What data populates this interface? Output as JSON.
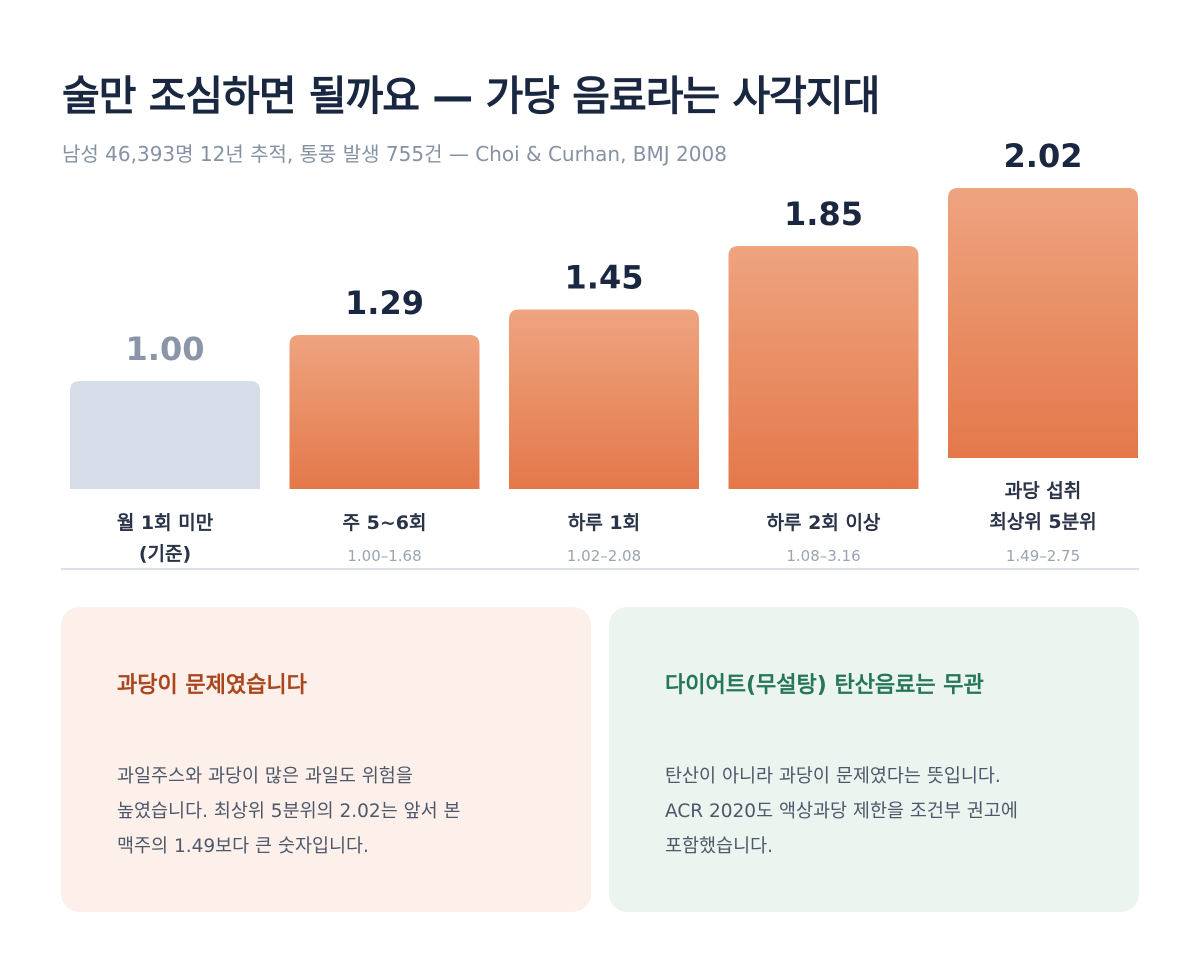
{
  "header": {
    "title": "술만 조심하면 될까요 — 가당 음료라는 사각지대",
    "subtitle": "남성 46,393명 12년 추적, 통풍 발생 755건 — Choi & Curhan, BMJ 2008"
  },
  "chart_data": {
    "type": "bar",
    "title": "술만 조심하면 될까요 — 가당 음료라는 사각지대",
    "xlabel": "",
    "ylabel": "",
    "ylim": [
      0,
      2.02
    ],
    "grid": false,
    "legend": "none",
    "categories": [
      [
        "월 1회 미만",
        "(기준)"
      ],
      [
        "주 5~6회"
      ],
      [
        "하루 1회"
      ],
      [
        "하루 2회 이상"
      ],
      [
        "과당 섭취",
        "최상위 5분위"
      ]
    ],
    "values": [
      1.0,
      1.29,
      1.45,
      1.85,
      2.02
    ],
    "value_labels": [
      "1.00",
      "1.29",
      "1.45",
      "1.85",
      "2.02"
    ],
    "ci_labels": [
      "",
      "1.00–1.68",
      "1.02–2.08",
      "1.08–3.16",
      "1.49–2.75"
    ],
    "colors": {
      "reference_bar": "#d6dde8",
      "bar_gradient_top": "#eea47f",
      "bar_gradient_bottom": "#e4784a",
      "reference_value": "#8a96a8",
      "value": "#1a2740",
      "ci": "#9aa4b2",
      "baseline": "#d9e0e8"
    }
  },
  "cards": [
    {
      "title": "과당이 문제였습니다",
      "lines": [
        "과일주스와 과당이 많은 과일도 위험을",
        "높였습니다. 최상위 5분위의 2.02는 앞서 본",
        "맥주의 1.49보다 큰 숫자입니다."
      ]
    },
    {
      "title": "다이어트(무설탕) 탄산음료는 무관",
      "lines": [
        "탄산이 아니라 과당이 문제였다는 뜻입니다.",
        "ACR 2020도 액상과당 제한을 조건부 권고에",
        "포함했습니다."
      ]
    }
  ]
}
